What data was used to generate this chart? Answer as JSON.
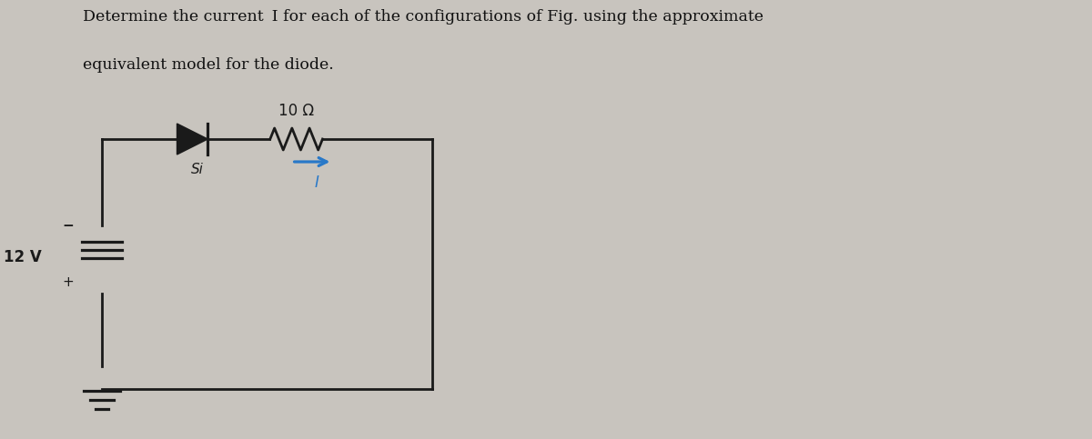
{
  "title_line1": "Determine the current  I for each of the configurations of Fig. using the approximate",
  "title_line2": "equivalent model for the diode.",
  "bg_color": "#c8c4be",
  "circuit_color": "#1a1a1a",
  "arrow_color": "#2878c8",
  "voltage_label": "12 V",
  "diode_label": "Si",
  "resistor_label": "10 Ω",
  "current_label": "I",
  "minus_label": "−",
  "plus_label": "+"
}
